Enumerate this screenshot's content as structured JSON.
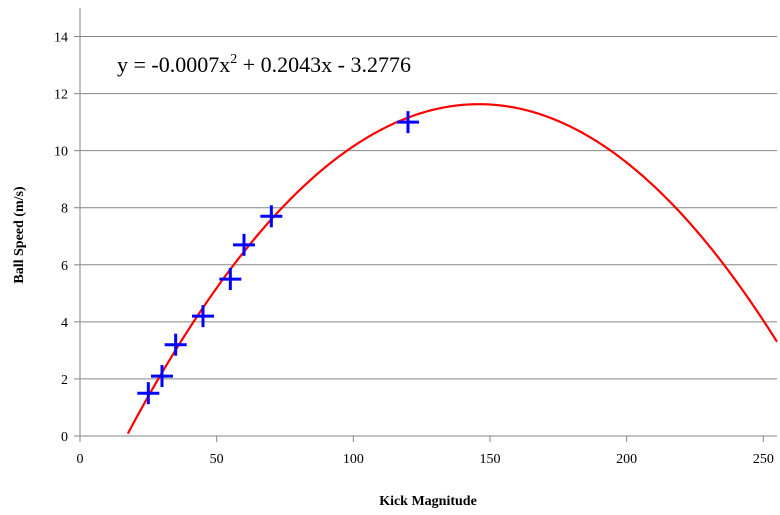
{
  "chart_data": {
    "type": "scatter",
    "title": "",
    "xlabel": "Kick Magnitude",
    "ylabel": "Ball Speed (m/s)",
    "xlim": [
      0,
      255
    ],
    "ylim": [
      0,
      15
    ],
    "x_ticks": [
      0,
      50,
      100,
      150,
      200,
      250
    ],
    "y_ticks": [
      0,
      2,
      4,
      6,
      8,
      10,
      12,
      14
    ],
    "grid": "horizontal",
    "legend": "none",
    "series": [
      {
        "marker": "plus",
        "color": "#0000ff",
        "points": [
          {
            "x": 25,
            "y": 1.5
          },
          {
            "x": 30,
            "y": 2.1
          },
          {
            "x": 35,
            "y": 3.2
          },
          {
            "x": 45,
            "y": 4.2
          },
          {
            "x": 55,
            "y": 5.5
          },
          {
            "x": 60,
            "y": 6.7
          },
          {
            "x": 70,
            "y": 7.7
          },
          {
            "x": 120,
            "y": 11.0
          }
        ]
      }
    ],
    "trendline": {
      "type": "polynomial",
      "color": "#ff0000",
      "coefficients": [
        -0.0007,
        0.2043,
        -3.2776
      ],
      "equation_prefix": "y = -0.0007x",
      "equation_exponent": "2",
      "equation_suffix": " + 0.2043x - 3.2776"
    }
  }
}
